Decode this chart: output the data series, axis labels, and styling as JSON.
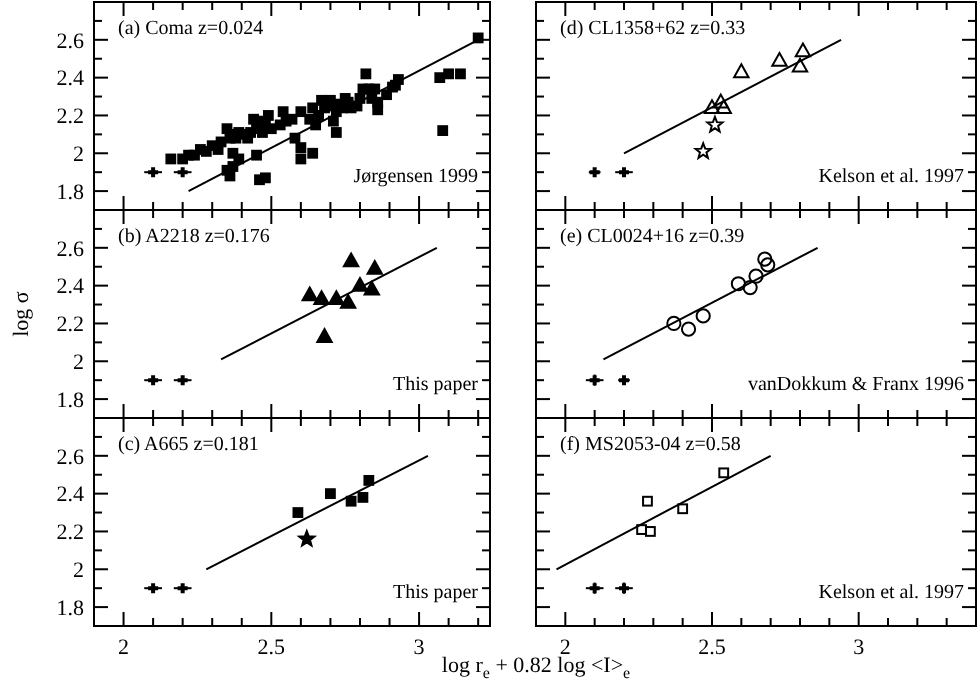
{
  "chart_data": [
    {
      "type": "scatter",
      "title": "(a) Coma z=0.024",
      "xlim": [
        1.9,
        3.24
      ],
      "ylim": [
        1.7,
        2.8
      ],
      "xticks": [
        {
          "value": 1.9,
          "label": null
        },
        2,
        {
          "value": 2.1,
          "label": null
        },
        {
          "value": 2.2,
          "label": null
        },
        {
          "value": 2.3,
          "label": null
        },
        {
          "value": 2.4,
          "label": null
        },
        2.5,
        {
          "value": 2.6,
          "label": null
        },
        {
          "value": 2.7,
          "label": null
        },
        {
          "value": 2.8,
          "label": null
        },
        {
          "value": 2.9,
          "label": null
        },
        3,
        {
          "value": 3.1,
          "label": null
        },
        {
          "value": 3.2,
          "label": null
        }
      ],
      "yticks": [
        {
          "value": 1.7,
          "label": null
        },
        1.8,
        {
          "value": 1.9,
          "label": null
        },
        2,
        {
          "value": 2.1,
          "label": null
        },
        2.2,
        {
          "value": 2.3,
          "label": null
        },
        2.4,
        {
          "value": 2.5,
          "label": null
        },
        2.6,
        {
          "value": 2.7,
          "label": null
        }
      ],
      "tick_labels": "y",
      "annotations": [
        "Jørgensen 1999"
      ],
      "series": [
        {
          "color": "#000000",
          "marker": "square",
          "x": [
            3.2,
            3.14,
            3.1,
            3.07,
            3.08,
            2.93,
            2.92,
            2.91,
            2.89,
            2.86,
            2.85,
            2.86,
            2.84,
            2.83,
            2.82,
            2.81,
            2.8,
            2.79,
            2.77,
            2.76,
            2.75,
            2.74,
            2.73,
            2.72,
            2.71,
            2.7,
            2.68,
            2.67,
            2.66,
            2.65,
            2.64,
            2.63,
            2.6,
            2.57,
            2.55,
            2.54,
            2.53,
            2.5,
            2.49,
            2.48,
            2.47,
            2.46,
            2.45,
            2.43,
            2.42,
            2.4,
            2.39,
            2.38,
            2.37,
            2.36,
            2.35,
            2.33,
            2.32,
            2.3,
            2.28,
            2.26,
            2.24,
            2.22,
            2.2,
            2.16,
            2.71,
            2.72,
            2.58,
            2.6,
            2.6,
            2.64,
            2.44,
            2.37,
            2.36,
            2.48,
            2.46,
            2.35,
            2.37,
            2.39,
            2.45
          ],
          "values": [
            2.61,
            2.42,
            2.42,
            2.4,
            2.12,
            2.39,
            2.36,
            2.35,
            2.31,
            2.27,
            2.34,
            2.23,
            2.29,
            2.34,
            2.42,
            2.34,
            2.29,
            2.25,
            2.24,
            2.27,
            2.29,
            2.24,
            2.26,
            2.22,
            2.25,
            2.28,
            2.24,
            2.28,
            2.2,
            2.15,
            2.24,
            2.18,
            2.22,
            2.18,
            2.17,
            2.22,
            2.15,
            2.13,
            2.2,
            2.15,
            2.11,
            2.17,
            2.13,
            2.11,
            2.08,
            2.1,
            2.11,
            2.08,
            2.1,
            2.08,
            2.13,
            2.06,
            2.02,
            2.04,
            2.01,
            2.02,
            1.99,
            1.99,
            1.97,
            1.97,
            2.17,
            2.11,
            2.08,
            1.97,
            2.03,
            2,
            2.18,
            1.93,
            1.88,
            1.87,
            1.86,
            1.91,
            2,
            1.97,
            1.99
          ]
        },
        {
          "type": "line",
          "color": "#000000",
          "x": [
            2.22,
            3.2
          ],
          "values": [
            1.8,
            2.6
          ]
        },
        {
          "color": "#000000",
          "marker": "cross",
          "x": [
            2.1,
            2.2
          ],
          "values": [
            1.9,
            1.9
          ],
          "errors": [
            0.02,
            null
          ],
          "xerrors": [
            0.03,
            0.03
          ]
        }
      ]
    },
    {
      "type": "scatter",
      "title": "(d) CL1358+62 z=0.33",
      "xlim": [
        1.9,
        3.4
      ],
      "ylim": [
        1.7,
        2.8
      ],
      "xticks": [
        {
          "value": 1.9,
          "label": null
        },
        2,
        {
          "value": 2.1,
          "label": null
        },
        {
          "value": 2.2,
          "label": null
        },
        {
          "value": 2.3,
          "label": null
        },
        {
          "value": 2.4,
          "label": null
        },
        2.5,
        {
          "value": 2.6,
          "label": null
        },
        {
          "value": 2.7,
          "label": null
        },
        {
          "value": 2.8,
          "label": null
        },
        {
          "value": 2.9,
          "label": null
        },
        3,
        {
          "value": 3.1,
          "label": null
        },
        {
          "value": 3.2,
          "label": null
        },
        {
          "value": 3.3,
          "label": null
        }
      ],
      "yticks": [
        {
          "value": 1.7,
          "label": null
        },
        1.8,
        {
          "value": 1.9,
          "label": null
        },
        2,
        {
          "value": 2.1,
          "label": null
        },
        2.2,
        {
          "value": 2.3,
          "label": null
        },
        2.4,
        {
          "value": 2.5,
          "label": null
        },
        2.6,
        {
          "value": 2.7,
          "label": null
        }
      ],
      "tick_labels": false,
      "annotations": [
        "Kelson et al. 1997"
      ],
      "series": [
        {
          "color": "#000000",
          "marker": "triangle",
          "x": [
            2.81,
            2.73,
            2.6,
            2.53,
            2.5,
            2.54,
            2.8
          ],
          "values": [
            2.54,
            2.49,
            2.43,
            2.27,
            2.24,
            2.24,
            2.46
          ]
        },
        {
          "color": "#000000",
          "marker": "star",
          "x": [
            2.51,
            2.47
          ],
          "values": [
            2.15,
            2.01
          ]
        },
        {
          "type": "line",
          "color": "#000000",
          "x": [
            2.2,
            2.94
          ],
          "values": [
            2,
            2.6
          ]
        },
        {
          "color": "#000000",
          "marker": "cross",
          "x": [
            2.1,
            2.2
          ],
          "values": [
            1.9,
            1.9
          ],
          "errors": [
            0.02,
            0.02
          ],
          "xerrors": [
            0.02,
            0.03
          ]
        }
      ]
    },
    {
      "type": "scatter",
      "title": "(b) A2218 z=0.176",
      "ylabel": "log σ",
      "xlim": [
        1.9,
        3.24
      ],
      "ylim": [
        1.7,
        2.8
      ],
      "xticks": [
        {
          "value": 1.9,
          "label": null
        },
        2,
        {
          "value": 2.1,
          "label": null
        },
        {
          "value": 2.2,
          "label": null
        },
        {
          "value": 2.3,
          "label": null
        },
        {
          "value": 2.4,
          "label": null
        },
        2.5,
        {
          "value": 2.6,
          "label": null
        },
        {
          "value": 2.7,
          "label": null
        },
        {
          "value": 2.8,
          "label": null
        },
        {
          "value": 2.9,
          "label": null
        },
        3,
        {
          "value": 3.1,
          "label": null
        },
        {
          "value": 3.2,
          "label": null
        }
      ],
      "yticks": [
        {
          "value": 1.7,
          "label": null
        },
        1.8,
        {
          "value": 1.9,
          "label": null
        },
        2,
        {
          "value": 2.1,
          "label": null
        },
        2.2,
        {
          "value": 2.3,
          "label": null
        },
        2.4,
        {
          "value": 2.5,
          "label": null
        },
        2.6,
        {
          "value": 2.7,
          "label": null
        }
      ],
      "tick_labels": "y",
      "annotations": [
        "This paper"
      ],
      "series": [
        {
          "color": "#000000",
          "marker": "triangle",
          "x": [
            2.63,
            2.67,
            2.68,
            2.72,
            2.76,
            2.77,
            2.8,
            2.84,
            2.85
          ],
          "values": [
            2.35,
            2.33,
            2.13,
            2.33,
            2.31,
            2.53,
            2.4,
            2.38,
            2.49
          ]
        },
        {
          "type": "line",
          "color": "#000000",
          "x": [
            2.33,
            3.06
          ],
          "values": [
            2.01,
            2.6
          ]
        },
        {
          "color": "#000000",
          "marker": "cross",
          "x": [
            2.1,
            2.2
          ],
          "values": [
            1.9,
            1.9
          ],
          "errors": [
            0.02,
            0.02
          ],
          "xerrors": [
            0.03,
            0.03
          ]
        }
      ]
    },
    {
      "type": "scatter",
      "title": "(e) CL0024+16 z=0.39",
      "xlim": [
        1.9,
        3.4
      ],
      "ylim": [
        1.7,
        2.8
      ],
      "xticks": [
        {
          "value": 1.9,
          "label": null
        },
        2,
        {
          "value": 2.1,
          "label": null
        },
        {
          "value": 2.2,
          "label": null
        },
        {
          "value": 2.3,
          "label": null
        },
        {
          "value": 2.4,
          "label": null
        },
        2.5,
        {
          "value": 2.6,
          "label": null
        },
        {
          "value": 2.7,
          "label": null
        },
        {
          "value": 2.8,
          "label": null
        },
        {
          "value": 2.9,
          "label": null
        },
        3,
        {
          "value": 3.1,
          "label": null
        },
        {
          "value": 3.2,
          "label": null
        },
        {
          "value": 3.3,
          "label": null
        }
      ],
      "yticks": [
        {
          "value": 1.7,
          "label": null
        },
        1.8,
        {
          "value": 1.9,
          "label": null
        },
        2,
        {
          "value": 2.1,
          "label": null
        },
        2.2,
        {
          "value": 2.3,
          "label": null
        },
        2.4,
        {
          "value": 2.5,
          "label": null
        },
        2.6,
        {
          "value": 2.7,
          "label": null
        }
      ],
      "tick_labels": false,
      "annotations": [
        "vanDokkum & Franx 1996"
      ],
      "series": [
        {
          "color": "#000000",
          "marker": "circle",
          "x": [
            2.37,
            2.42,
            2.47,
            2.59,
            2.63,
            2.65,
            2.68,
            2.69
          ],
          "values": [
            2.2,
            2.17,
            2.24,
            2.41,
            2.39,
            2.45,
            2.54,
            2.51
          ]
        },
        {
          "type": "line",
          "color": "#000000",
          "x": [
            2.13,
            2.86
          ],
          "values": [
            2.01,
            2.6
          ]
        },
        {
          "color": "#000000",
          "marker": "cross",
          "x": [
            2.1,
            2.2
          ],
          "values": [
            1.9,
            1.9
          ],
          "errors": [
            0.03,
            0.02
          ],
          "xerrors": [
            0.03,
            0.02
          ]
        }
      ]
    },
    {
      "type": "scatter",
      "title": "(c) A665 z=0.181",
      "xlabel": "log r$_{e}$ + 0.82 log <I>$_{e}$",
      "xlim": [
        1.9,
        3.24
      ],
      "ylim": [
        1.7,
        2.8
      ],
      "xticks": [
        {
          "value": 1.9,
          "label": null
        },
        2,
        {
          "value": 2.1,
          "label": null
        },
        {
          "value": 2.2,
          "label": null
        },
        {
          "value": 2.3,
          "label": null
        },
        {
          "value": 2.4,
          "label": null
        },
        2.5,
        {
          "value": 2.6,
          "label": null
        },
        {
          "value": 2.7,
          "label": null
        },
        {
          "value": 2.8,
          "label": null
        },
        {
          "value": 2.9,
          "label": null
        },
        3,
        {
          "value": 3.1,
          "label": null
        },
        {
          "value": 3.2,
          "label": null
        }
      ],
      "yticks": [
        {
          "value": 1.7,
          "label": null
        },
        1.8,
        {
          "value": 1.9,
          "label": null
        },
        2,
        {
          "value": 2.1,
          "label": null
        },
        2.2,
        {
          "value": 2.3,
          "label": null
        },
        2.4,
        {
          "value": 2.5,
          "label": null
        },
        2.6,
        {
          "value": 2.7,
          "label": null
        }
      ],
      "annotations": [
        "This paper"
      ],
      "series": [
        {
          "color": "#000000",
          "marker": "square",
          "x": [
            2.59,
            2.7,
            2.77,
            2.81,
            2.83
          ],
          "values": [
            2.3,
            2.4,
            2.36,
            2.38,
            2.47
          ]
        },
        {
          "color": "#000000",
          "marker": "star",
          "x": [
            2.62
          ],
          "values": [
            2.16
          ]
        },
        {
          "type": "line",
          "color": "#000000",
          "x": [
            2.28,
            3.03
          ],
          "values": [
            2,
            2.6
          ]
        },
        {
          "color": "#000000",
          "marker": "cross",
          "x": [
            2.1,
            2.2
          ],
          "values": [
            1.9,
            1.9
          ],
          "errors": [
            0.02,
            0.02
          ],
          "xerrors": [
            0.03,
            0.03
          ]
        }
      ]
    },
    {
      "type": "scatter",
      "title": "(f) MS2053-04 z=0.58",
      "xlim": [
        1.9,
        3.4
      ],
      "ylim": [
        1.7,
        2.8
      ],
      "xticks": [
        {
          "value": 1.9,
          "label": null
        },
        2,
        {
          "value": 2.1,
          "label": null
        },
        {
          "value": 2.2,
          "label": null
        },
        {
          "value": 2.3,
          "label": null
        },
        {
          "value": 2.4,
          "label": null
        },
        2.5,
        {
          "value": 2.6,
          "label": null
        },
        {
          "value": 2.7,
          "label": null
        },
        {
          "value": 2.8,
          "label": null
        },
        {
          "value": 2.9,
          "label": null
        },
        3,
        {
          "value": 3.1,
          "label": null
        },
        {
          "value": 3.2,
          "label": null
        },
        {
          "value": 3.3,
          "label": null
        }
      ],
      "yticks": [
        {
          "value": 1.7,
          "label": null
        },
        1.8,
        {
          "value": 1.9,
          "label": null
        },
        2,
        {
          "value": 2.1,
          "label": null
        },
        2.2,
        {
          "value": 2.3,
          "label": null
        },
        2.4,
        {
          "value": 2.5,
          "label": null
        },
        2.6,
        {
          "value": 2.7,
          "label": null
        }
      ],
      "tick_labels": "x",
      "annotations": [
        "Kelson et al. 1997"
      ],
      "series": [
        {
          "color": "#000000",
          "marker": "square",
          "x": [
            2.54,
            2.28,
            2.4,
            2.26,
            2.29
          ],
          "values": [
            2.51,
            2.36,
            2.32,
            2.21,
            2.2
          ]
        },
        {
          "type": "line",
          "color": "#000000",
          "x": [
            1.97,
            2.7
          ],
          "values": [
            2,
            2.6
          ]
        },
        {
          "color": "#000000",
          "marker": "cross",
          "x": [
            2.1,
            2.2
          ],
          "values": [
            1.9,
            1.9
          ],
          "errors": [
            0.03,
            0.03
          ],
          "xerrors": [
            0.03,
            0.03
          ]
        }
      ]
    }
  ]
}
